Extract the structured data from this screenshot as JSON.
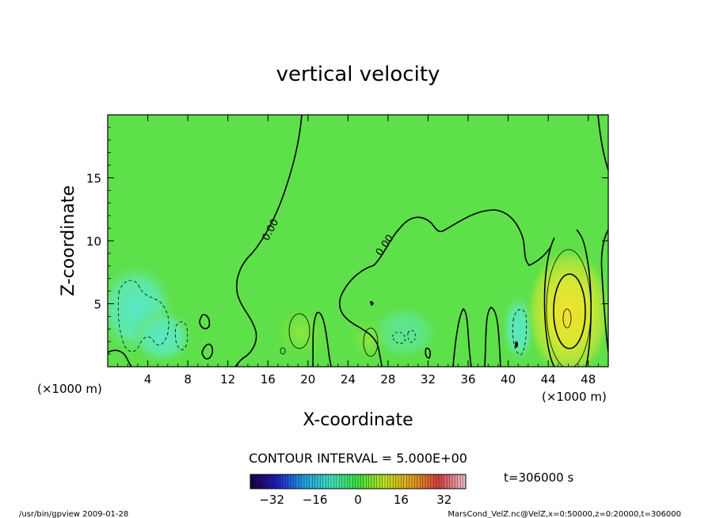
{
  "chart_data": {
    "type": "heatmap",
    "title": "vertical velocity",
    "xlabel": "X-coordinate",
    "ylabel": "Z-coordinate",
    "x_unit": "(×1000 m)",
    "y_unit": "(×1000 m)",
    "xlim": [
      0,
      50
    ],
    "ylim": [
      0,
      20
    ],
    "x_ticks": [
      4,
      8,
      12,
      16,
      20,
      24,
      28,
      32,
      36,
      40,
      44,
      48
    ],
    "y_ticks": [
      5,
      10,
      15
    ],
    "contour_interval_label": "CONTOUR INTERVAL = 5.000E+00",
    "contour_labels": [
      "0.00",
      "0.00"
    ],
    "colorbar": {
      "min": -40,
      "max": 40,
      "ticks": [
        -32,
        -16,
        0,
        16,
        32
      ],
      "colors": [
        "#1a0040",
        "#2020c0",
        "#20a0e0",
        "#40e0c0",
        "#40e040",
        "#c0e020",
        "#e0a020",
        "#d04040",
        "#f0c0d0"
      ]
    },
    "time_label": "t=306000 s",
    "features": [
      {
        "type": "updraft",
        "x_center": 46,
        "z_center": 4,
        "value": 15
      },
      {
        "type": "downdraft",
        "x_center": 3,
        "z_center": 5,
        "value": -5
      },
      {
        "type": "downdraft",
        "x_center": 40.5,
        "z_center": 2.5,
        "value": -5
      }
    ],
    "grid": false
  },
  "footer": {
    "left": "/usr/bin/gpview   2009-01-28",
    "right": "MarsCond_VelZ.nc@VelZ,x=0:50000,z=0:20000,t=306000"
  }
}
